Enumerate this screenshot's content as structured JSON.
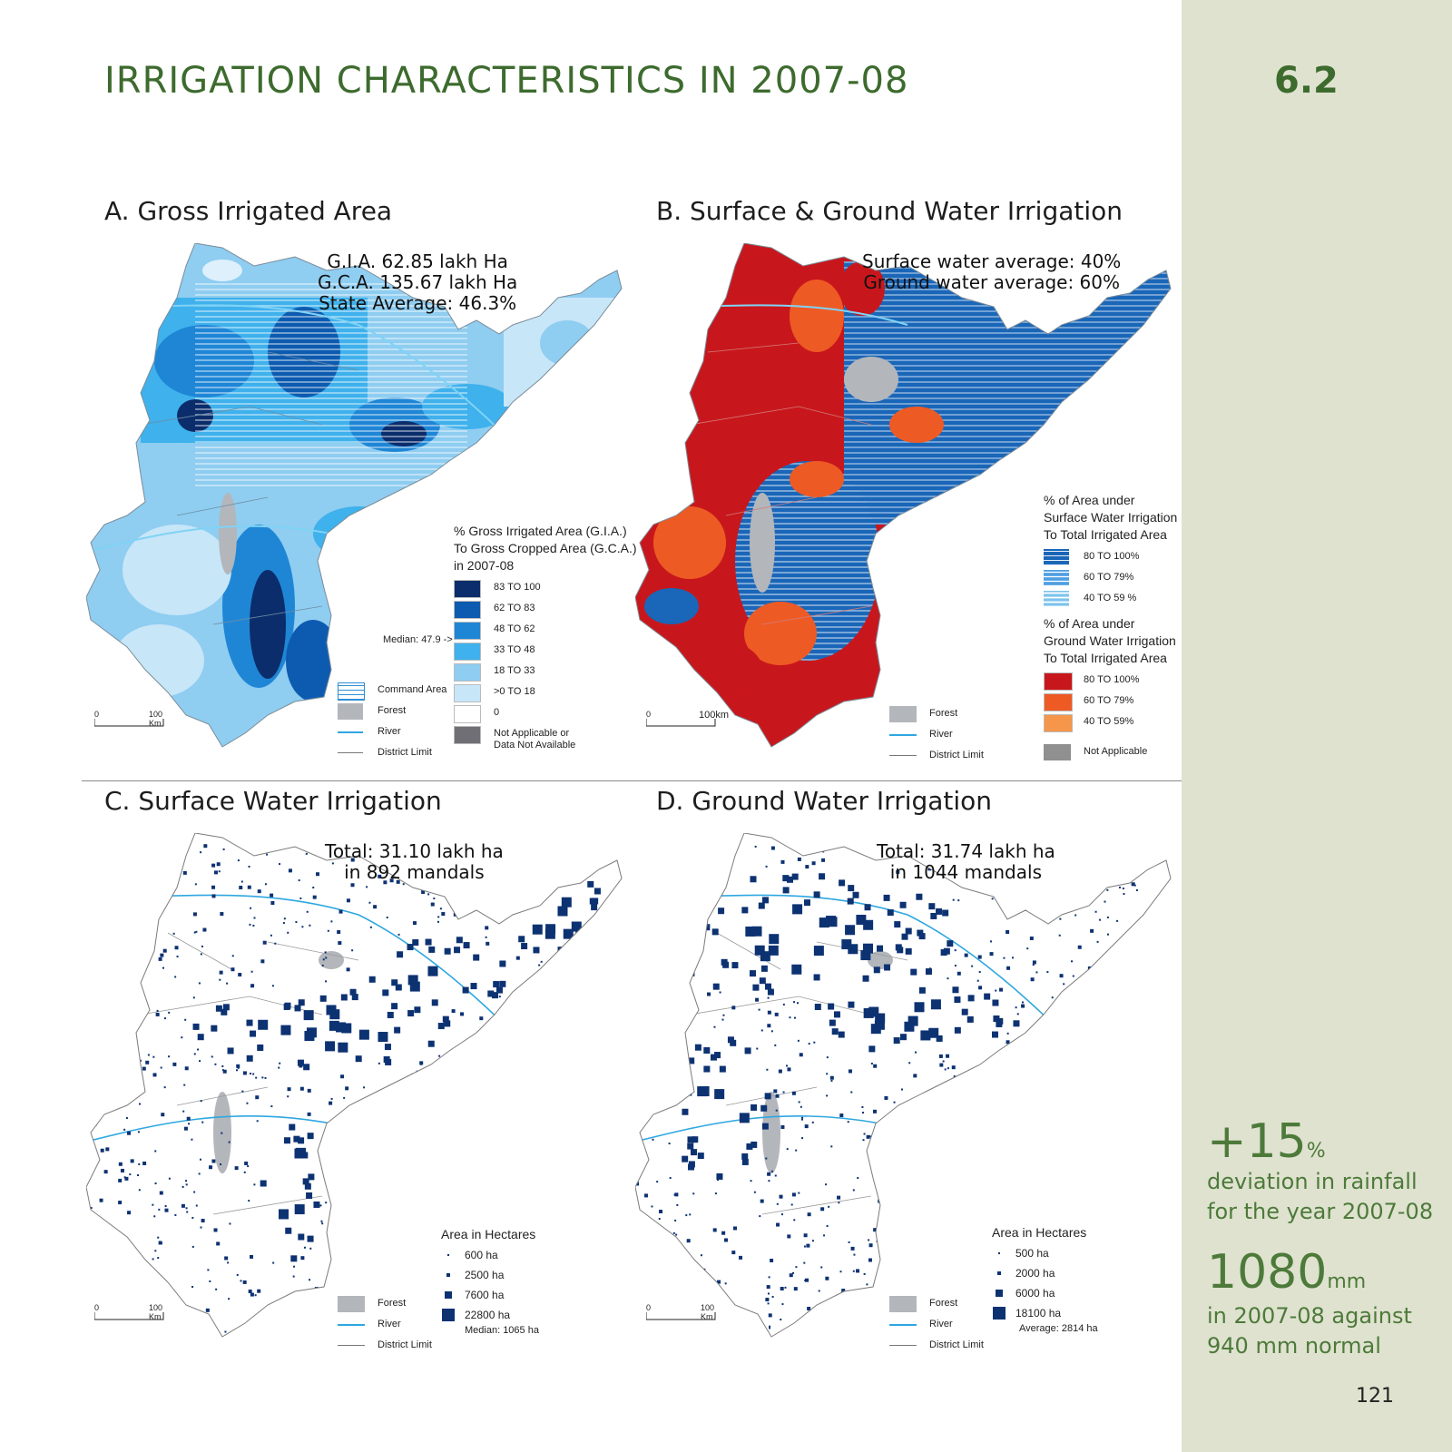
{
  "page": {
    "title": "IRRIGATION CHARACTERISTICS IN 2007-08",
    "section_number": "6.2",
    "page_number": "121"
  },
  "sidebar": {
    "stat1_value": "+15",
    "stat1_unit": "%",
    "stat1_line1": "deviation in rainfall",
    "stat1_line2": "for the year 2007-08",
    "stat2_value": "1080",
    "stat2_unit": "mm",
    "stat2_line1": "in 2007-08 against",
    "stat2_line2": "940 mm normal"
  },
  "panel_a": {
    "title": "A. Gross Irrigated Area",
    "annotation": [
      "G.I.A. 62.85 lakh Ha",
      "G.C.A. 135.67 lakh Ha",
      "State Average: 46.3%"
    ],
    "legend_title": [
      "% Gross Irrigated Area (G.I.A.)",
      "To Gross Cropped Area (G.C.A.)",
      "in 2007-08"
    ],
    "legend_items": [
      {
        "label": "83 TO 100",
        "color": "#0b2d6b"
      },
      {
        "label": "62 TO 83",
        "color": "#0d5bb0"
      },
      {
        "label": "48 TO 62",
        "color": "#1f86d6"
      },
      {
        "label": "33 TO 48",
        "color": "#3fb1ec"
      },
      {
        "label": "18 TO 33",
        "color": "#8fcdf1"
      },
      {
        "label": ">0 TO 18",
        "color": "#c7e6f8"
      },
      {
        "label": "0",
        "color": "#ffffff"
      },
      {
        "label": "Not Applicable or",
        "label2": "Data Not Available",
        "color": "#6f6f75"
      }
    ],
    "median": "Median: 47.9 ->",
    "key": [
      {
        "label": "Command Area",
        "kind": "hatch"
      },
      {
        "label": "Forest",
        "kind": "forest"
      },
      {
        "label": "River",
        "kind": "river"
      },
      {
        "label": "District Limit",
        "kind": "district"
      }
    ],
    "scale": {
      "start": "0",
      "end": "100 Km"
    }
  },
  "panel_b": {
    "title": "B. Surface & Ground Water Irrigation",
    "annotation": [
      "Surface water average: 40%",
      "Ground water average: 60%"
    ],
    "surface_title": [
      "% of Area under",
      "Surface Water Irrigation",
      "To Total Irrigated Area"
    ],
    "surface_items": [
      {
        "label": "80 TO 100%",
        "color": "#1a66b8"
      },
      {
        "label": "60 TO 79%",
        "color": "#2e8fd6"
      },
      {
        "label": "40 TO 59 %",
        "color": "#7cc3ee"
      }
    ],
    "ground_title": [
      "% of Area under",
      "Ground Water Irrigation",
      "To Total Irrigated Area"
    ],
    "ground_items": [
      {
        "label": "80 TO 100%",
        "color": "#c8171c"
      },
      {
        "label": "60 TO 79%",
        "color": "#ee5a24"
      },
      {
        "label": "40 TO 59%",
        "color": "#f5964a"
      }
    ],
    "not_applicable": "Not Applicable",
    "key": [
      {
        "label": "Forest",
        "kind": "forest"
      },
      {
        "label": "River",
        "kind": "river"
      },
      {
        "label": "District Limit",
        "kind": "district"
      }
    ],
    "scale": {
      "start": "0",
      "end": "100km"
    }
  },
  "panel_c": {
    "title": "C. Surface Water Irrigation",
    "annotation": [
      "Total: 31.10 lakh ha",
      "in 892 mandals"
    ],
    "legend_title": "Area in Hectares",
    "legend_items": [
      {
        "label": "600 ha",
        "size": 2
      },
      {
        "label": "2500 ha",
        "size": 4
      },
      {
        "label": "7600 ha",
        "size": 8
      },
      {
        "label": "22800 ha",
        "size": 14
      }
    ],
    "note": "Median: 1065 ha",
    "key": [
      {
        "label": "Forest",
        "kind": "forest"
      },
      {
        "label": "River",
        "kind": "river"
      },
      {
        "label": "District Limit",
        "kind": "district"
      }
    ],
    "scale": {
      "start": "0",
      "end": "100 Km"
    }
  },
  "panel_d": {
    "title": "D. Ground Water Irrigation",
    "annotation": [
      "Total: 31.74 lakh ha",
      "in 1044 mandals"
    ],
    "legend_title": "Area in Hectares",
    "legend_items": [
      {
        "label": "500 ha",
        "size": 2
      },
      {
        "label": "2000 ha",
        "size": 4
      },
      {
        "label": "6000 ha",
        "size": 8
      },
      {
        "label": "18100 ha",
        "size": 14
      }
    ],
    "note": "Average: 2814 ha",
    "key": [
      {
        "label": "Forest",
        "kind": "forest"
      },
      {
        "label": "River",
        "kind": "river"
      },
      {
        "label": "District Limit",
        "kind": "district"
      }
    ],
    "scale": {
      "start": "0",
      "end": "100 Km"
    }
  },
  "colors": {
    "title_green": "#3d6b2e",
    "sidebar_bg": "#dfe2cf",
    "forest_gray": "#b3b6bb",
    "river_blue": "#2ea7e0",
    "dot_navy": "#0d3272"
  }
}
